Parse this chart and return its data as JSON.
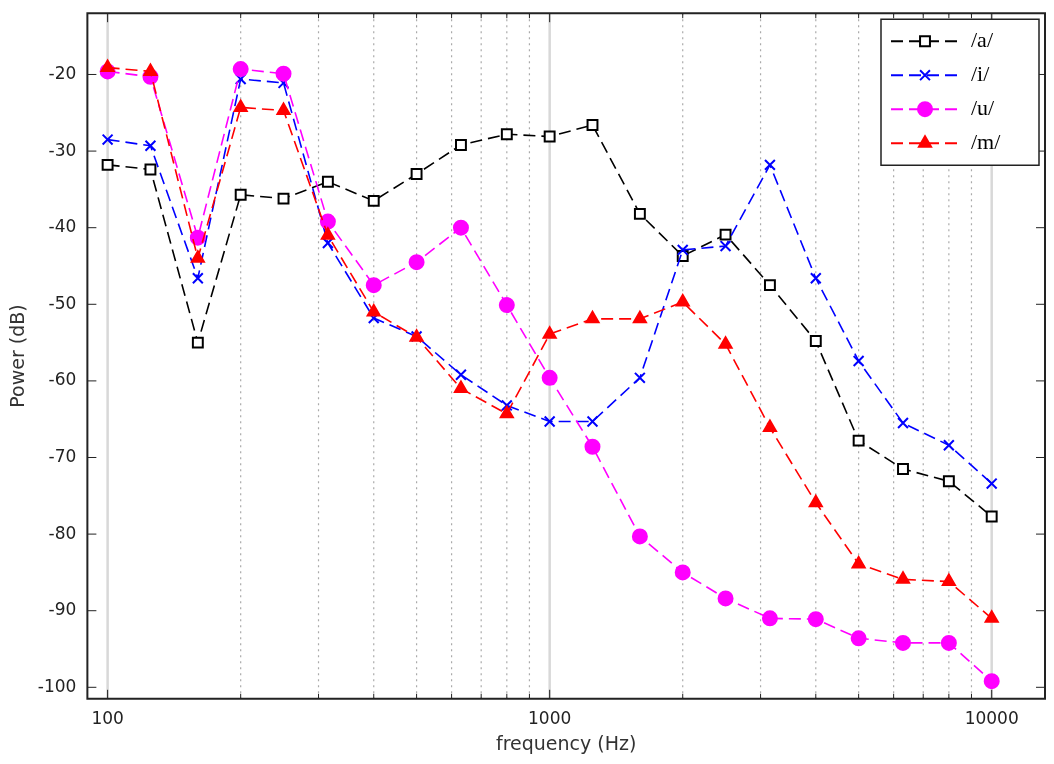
{
  "chart_data": {
    "type": "line",
    "xlabel": "frequency (Hz)",
    "ylabel": "Power (dB)",
    "x": [
      100,
      125,
      160,
      200,
      250,
      315,
      400,
      500,
      630,
      800,
      1000,
      1250,
      1600,
      2000,
      2500,
      3150,
      4000,
      5000,
      6300,
      8000,
      10000
    ],
    "series": [
      {
        "name": "/a/",
        "color": "#000000",
        "marker": "square",
        "values": [
          -31.8,
          -32.4,
          -55,
          -35.7,
          -36.2,
          -34,
          -36.5,
          -33,
          -29.2,
          -27.8,
          -28.1,
          -26.6,
          -38.2,
          -43.7,
          -40.9,
          -47.5,
          -54.8,
          -67.8,
          -71.5,
          -73.1,
          -77.7
        ]
      },
      {
        "name": "/i/",
        "color": "#0000ff",
        "marker": "cross",
        "values": [
          -28.5,
          -29.3,
          -46.6,
          -20.6,
          -21.1,
          -42,
          -51.8,
          -54.2,
          -59.2,
          -63.2,
          -65.3,
          -65.3,
          -59.6,
          -42.9,
          -42.4,
          -31.8,
          -46.6,
          -57.4,
          -65.5,
          -68.4,
          -73.4
        ]
      },
      {
        "name": "/u/",
        "color": "#ff00ff",
        "marker": "circle",
        "values": [
          -19.6,
          -20.3,
          -41.3,
          -19.3,
          -19.9,
          -39.2,
          -47.5,
          -44.5,
          -40,
          -50.1,
          -59.6,
          -68.6,
          -80.3,
          -85,
          -88.4,
          -91,
          -91.1,
          -93.6,
          -94.2,
          -94.2,
          -99.2
        ]
      },
      {
        "name": "/m/",
        "color": "#ff0000",
        "marker": "triangle",
        "values": [
          -19.1,
          -19.6,
          -44,
          -24.3,
          -24.7,
          -41,
          -51,
          -54.3,
          -61,
          -64.3,
          -53.9,
          -51.9,
          -51.9,
          -49.7,
          -55.2,
          -66.1,
          -75.9,
          -83.9,
          -85.9,
          -86.2,
          -91
        ]
      }
    ],
    "log": "x",
    "xlim": [
      90,
      13200
    ],
    "xticks": [
      100,
      {
        "value": 200,
        "label": null
      },
      {
        "value": 300,
        "label": null
      },
      {
        "value": 400,
        "label": null
      },
      {
        "value": 500,
        "label": null
      },
      {
        "value": 600,
        "label": null
      },
      {
        "value": 700,
        "label": null
      },
      {
        "value": 800,
        "label": null
      },
      {
        "value": 900,
        "label": null
      },
      1000,
      {
        "value": 2000,
        "label": null
      },
      {
        "value": 3000,
        "label": null
      },
      {
        "value": 4000,
        "label": null
      },
      {
        "value": 5000,
        "label": null
      },
      {
        "value": 6000,
        "label": null
      },
      {
        "value": 7000,
        "label": null
      },
      {
        "value": 8000,
        "label": null
      },
      {
        "value": 9000,
        "label": null
      },
      10000
    ],
    "ylim": [
      -101.5,
      -12
    ],
    "yticks": [
      -100,
      -90,
      -80,
      -70,
      -60,
      -50,
      -40,
      -30,
      -20
    ],
    "grid": "x",
    "legend": "top right",
    "line_style": "dashed"
  }
}
